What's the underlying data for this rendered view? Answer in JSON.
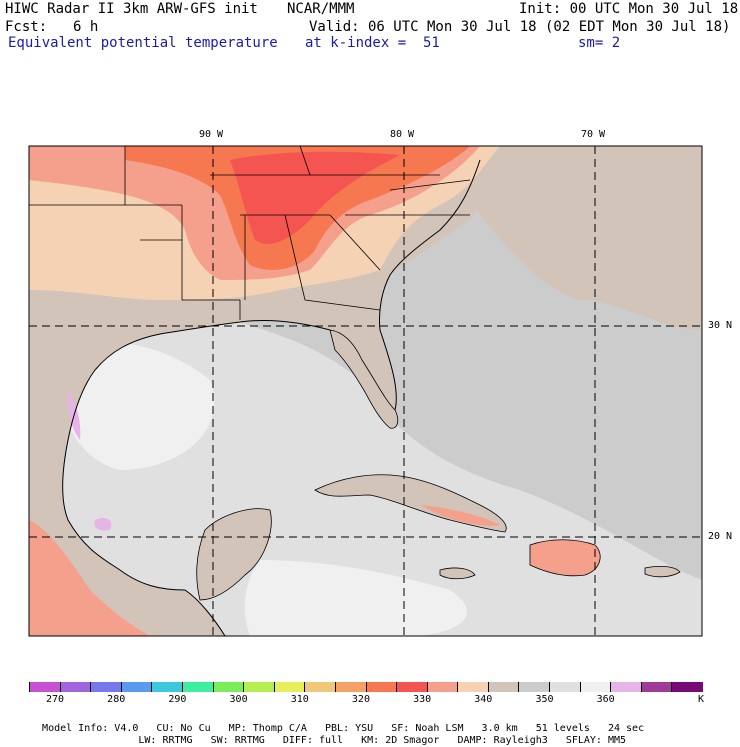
{
  "header": {
    "model_title": "HIWC Radar II 3km ARW-GFS init",
    "org": "NCAR/MMM",
    "init": "Init: 00 UTC Mon 30 Jul 18",
    "fcst_label": "Fcst:",
    "fcst_value": "6 h",
    "valid": "Valid: 06 UTC Mon 30 Jul 18 (02 EDT Mon 30 Jul 18)",
    "field": "Equivalent potential temperature",
    "level": "at k-index =  51",
    "smooth": "sm= 2"
  },
  "map": {
    "lon_labels": [
      "90 W",
      "80 W",
      "70 W"
    ],
    "lat_labels": [
      "30 N",
      "20 N"
    ]
  },
  "colorbar": {
    "colors": [
      "#c850d2",
      "#a064dc",
      "#7878ee",
      "#5a9af0",
      "#3cc8dc",
      "#3ceea0",
      "#78ee5a",
      "#b4ee50",
      "#e6ee5a",
      "#f0c878",
      "#f5a064",
      "#f57850",
      "#f55550",
      "#f5a08c",
      "#f5d2b4",
      "#d2c4b8",
      "#cccccc",
      "#e0e0e0",
      "#f0f0f0",
      "#e6b4e6",
      "#a03c96",
      "#780a78"
    ],
    "ticks": [
      "270",
      "280",
      "290",
      "300",
      "310",
      "320",
      "330",
      "340",
      "350",
      "360"
    ],
    "unit": "K"
  },
  "footer": {
    "line1": [
      "Model Info: V4.0",
      "CU: No Cu",
      "MP: Thomp C/A",
      "PBL: YSU",
      "SF: Noah LSM",
      "3.0 km",
      "51 levels",
      "24 sec"
    ],
    "line2": [
      "LW: RRTMG",
      "SW: RRTMG",
      "DIFF: full",
      "KM: 2D Smagor",
      "DAMP: Rayleigh3",
      "SFLAY: MM5"
    ]
  }
}
